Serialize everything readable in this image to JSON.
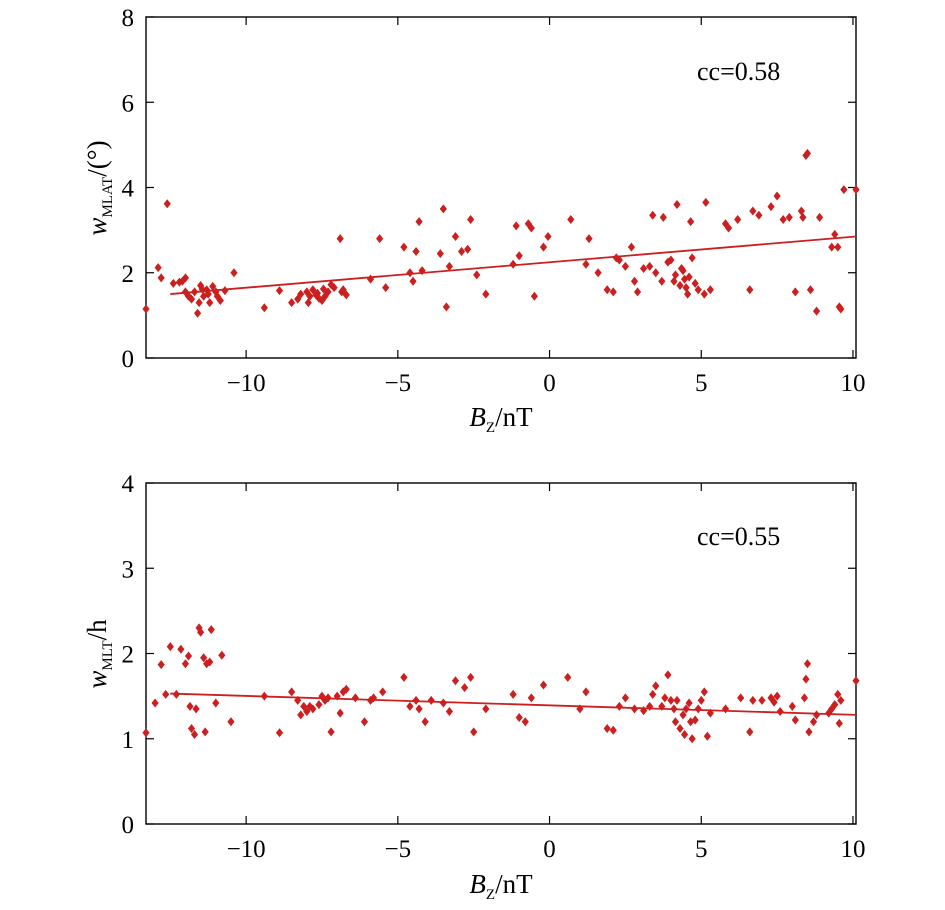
{
  "colors": {
    "marker": "#cc1f1f",
    "fit_line": "#cc1f1f",
    "axes": "#000000"
  },
  "chart_data": [
    {
      "type": "scatter",
      "title": "",
      "xlabel": {
        "base": "B",
        "sub": "Z",
        "suffix": "/nT"
      },
      "ylabel": {
        "base": "w",
        "sub": "MLAT",
        "suffix": "/(°)"
      },
      "xlim": [
        -13.3,
        10.1
      ],
      "ylim": [
        0,
        8
      ],
      "xticks": [
        -10,
        -5,
        0,
        5,
        10
      ],
      "xtick_labels": [
        "−10",
        "−5",
        "0",
        "5",
        "10"
      ],
      "yticks": [
        0,
        2,
        4,
        6,
        8
      ],
      "ytick_labels": [
        "0",
        "2",
        "4",
        "6",
        "8"
      ],
      "annotation": "cc=0.58",
      "grid": false,
      "marker": "diamond",
      "fit_line": {
        "x": [
          -12.5,
          10.1
        ],
        "y": [
          1.5,
          2.85
        ]
      },
      "points": [
        [
          -13.3,
          1.15
        ],
        [
          -12.9,
          2.12
        ],
        [
          -12.8,
          1.88
        ],
        [
          -12.6,
          3.62
        ],
        [
          -12.4,
          1.75
        ],
        [
          -12.2,
          1.78
        ],
        [
          -12.0,
          1.88
        ],
        [
          -12.1,
          1.8
        ],
        [
          -12.0,
          1.55
        ],
        [
          -11.9,
          1.45
        ],
        [
          -11.8,
          1.38
        ],
        [
          -11.7,
          1.55
        ],
        [
          -11.6,
          1.05
        ],
        [
          -11.55,
          1.3
        ],
        [
          -11.5,
          1.7
        ],
        [
          -11.45,
          1.62
        ],
        [
          -11.4,
          1.45
        ],
        [
          -11.3,
          1.6
        ],
        [
          -11.25,
          1.5
        ],
        [
          -11.2,
          1.3
        ],
        [
          -11.1,
          1.68
        ],
        [
          -11.0,
          1.55
        ],
        [
          -10.95,
          1.45
        ],
        [
          -10.85,
          1.35
        ],
        [
          -10.7,
          1.58
        ],
        [
          -10.4,
          2.0
        ],
        [
          -9.4,
          1.18
        ],
        [
          -8.9,
          1.58
        ],
        [
          -8.5,
          1.3
        ],
        [
          -8.3,
          1.38
        ],
        [
          -8.2,
          1.5
        ],
        [
          -8.0,
          1.55
        ],
        [
          -7.95,
          1.3
        ],
        [
          -7.9,
          1.45
        ],
        [
          -7.8,
          1.6
        ],
        [
          -7.7,
          1.48
        ],
        [
          -7.65,
          1.52
        ],
        [
          -7.6,
          1.4
        ],
        [
          -7.5,
          1.35
        ],
        [
          -7.45,
          1.62
        ],
        [
          -7.4,
          1.45
        ],
        [
          -7.3,
          1.55
        ],
        [
          -7.2,
          1.72
        ],
        [
          -7.1,
          1.65
        ],
        [
          -6.9,
          2.8
        ],
        [
          -6.85,
          1.55
        ],
        [
          -6.8,
          1.6
        ],
        [
          -6.7,
          1.48
        ],
        [
          -5.9,
          1.85
        ],
        [
          -5.6,
          2.8
        ],
        [
          -5.4,
          1.65
        ],
        [
          -4.8,
          2.6
        ],
        [
          -4.6,
          2.0
        ],
        [
          -4.5,
          1.8
        ],
        [
          -4.4,
          2.5
        ],
        [
          -4.3,
          3.2
        ],
        [
          -4.2,
          2.05
        ],
        [
          -3.6,
          2.45
        ],
        [
          -3.5,
          3.5
        ],
        [
          -3.4,
          1.2
        ],
        [
          -3.3,
          2.15
        ],
        [
          -3.1,
          2.85
        ],
        [
          -2.9,
          2.5
        ],
        [
          -2.7,
          2.55
        ],
        [
          -2.6,
          3.25
        ],
        [
          -2.4,
          1.95
        ],
        [
          -2.1,
          1.5
        ],
        [
          -1.2,
          2.2
        ],
        [
          -1.1,
          3.1
        ],
        [
          -1.0,
          2.4
        ],
        [
          -0.7,
          3.15
        ],
        [
          -0.6,
          3.05
        ],
        [
          -0.5,
          1.45
        ],
        [
          -0.2,
          2.6
        ],
        [
          -0.05,
          2.85
        ],
        [
          0.7,
          3.25
        ],
        [
          1.2,
          2.2
        ],
        [
          1.3,
          2.8
        ],
        [
          1.6,
          2.0
        ],
        [
          1.9,
          1.6
        ],
        [
          2.1,
          1.55
        ],
        [
          2.2,
          2.35
        ],
        [
          2.3,
          2.3
        ],
        [
          2.5,
          2.15
        ],
        [
          2.7,
          2.6
        ],
        [
          2.8,
          1.8
        ],
        [
          2.9,
          1.55
        ],
        [
          3.1,
          2.1
        ],
        [
          3.3,
          2.15
        ],
        [
          3.4,
          3.35
        ],
        [
          3.5,
          2.0
        ],
        [
          3.7,
          1.8
        ],
        [
          3.75,
          3.3
        ],
        [
          3.9,
          2.25
        ],
        [
          4.0,
          2.3
        ],
        [
          4.1,
          1.8
        ],
        [
          4.15,
          1.95
        ],
        [
          4.2,
          3.6
        ],
        [
          4.3,
          1.7
        ],
        [
          4.35,
          2.1
        ],
        [
          4.4,
          2.05
        ],
        [
          4.45,
          1.85
        ],
        [
          4.5,
          1.65
        ],
        [
          4.55,
          1.5
        ],
        [
          4.6,
          1.9
        ],
        [
          4.65,
          3.2
        ],
        [
          4.7,
          2.35
        ],
        [
          4.8,
          1.75
        ],
        [
          4.9,
          1.6
        ],
        [
          5.1,
          1.5
        ],
        [
          5.15,
          3.65
        ],
        [
          5.3,
          1.6
        ],
        [
          5.8,
          3.15
        ],
        [
          5.9,
          3.05
        ],
        [
          6.2,
          3.25
        ],
        [
          6.6,
          1.6
        ],
        [
          6.7,
          3.45
        ],
        [
          6.9,
          3.35
        ],
        [
          7.3,
          3.55
        ],
        [
          7.5,
          3.8
        ],
        [
          7.7,
          3.25
        ],
        [
          7.9,
          3.3
        ],
        [
          8.1,
          1.55
        ],
        [
          8.3,
          3.45
        ],
        [
          8.35,
          3.3
        ],
        [
          8.45,
          4.75
        ],
        [
          8.5,
          4.8
        ],
        [
          8.6,
          1.6
        ],
        [
          8.8,
          1.1
        ],
        [
          8.9,
          3.3
        ],
        [
          9.3,
          2.6
        ],
        [
          9.4,
          2.9
        ],
        [
          9.5,
          2.6
        ],
        [
          9.55,
          1.2
        ],
        [
          9.6,
          1.15
        ],
        [
          9.7,
          3.95
        ],
        [
          10.1,
          3.95
        ]
      ]
    },
    {
      "type": "scatter",
      "title": "",
      "xlabel": {
        "base": "B",
        "sub": "Z",
        "suffix": "/nT"
      },
      "ylabel": {
        "base": "w",
        "sub": "MLT",
        "suffix": "/h"
      },
      "xlim": [
        -13.3,
        10.1
      ],
      "ylim": [
        0,
        4
      ],
      "xticks": [
        -10,
        -5,
        0,
        5,
        10
      ],
      "xtick_labels": [
        "−10",
        "−5",
        "0",
        "5",
        "10"
      ],
      "yticks": [
        0,
        1,
        2,
        3,
        4
      ],
      "ytick_labels": [
        "0",
        "1",
        "2",
        "3",
        "4"
      ],
      "annotation": "cc=0.55",
      "grid": false,
      "marker": "diamond",
      "fit_line": {
        "x": [
          -12.5,
          10.1
        ],
        "y": [
          1.53,
          1.28
        ]
      },
      "points": [
        [
          -13.3,
          1.07
        ],
        [
          -13.0,
          1.42
        ],
        [
          -12.8,
          1.87
        ],
        [
          -12.65,
          1.52
        ],
        [
          -12.5,
          2.08
        ],
        [
          -12.3,
          1.52
        ],
        [
          -12.15,
          2.05
        ],
        [
          -12.0,
          1.88
        ],
        [
          -11.9,
          1.97
        ],
        [
          -11.85,
          1.38
        ],
        [
          -11.8,
          1.12
        ],
        [
          -11.7,
          1.05
        ],
        [
          -11.65,
          1.35
        ],
        [
          -11.55,
          2.3
        ],
        [
          -11.5,
          2.25
        ],
        [
          -11.4,
          1.95
        ],
        [
          -11.35,
          1.08
        ],
        [
          -11.3,
          1.88
        ],
        [
          -11.2,
          1.9
        ],
        [
          -11.15,
          2.28
        ],
        [
          -11.0,
          1.42
        ],
        [
          -10.8,
          1.98
        ],
        [
          -10.5,
          1.2
        ],
        [
          -9.4,
          1.5
        ],
        [
          -8.9,
          1.07
        ],
        [
          -8.5,
          1.55
        ],
        [
          -8.3,
          1.45
        ],
        [
          -8.2,
          1.28
        ],
        [
          -8.1,
          1.38
        ],
        [
          -8.0,
          1.32
        ],
        [
          -7.9,
          1.38
        ],
        [
          -7.8,
          1.35
        ],
        [
          -7.6,
          1.4
        ],
        [
          -7.5,
          1.5
        ],
        [
          -7.4,
          1.45
        ],
        [
          -7.3,
          1.48
        ],
        [
          -7.2,
          1.08
        ],
        [
          -7.0,
          1.5
        ],
        [
          -6.9,
          1.3
        ],
        [
          -6.8,
          1.55
        ],
        [
          -6.7,
          1.58
        ],
        [
          -6.4,
          1.48
        ],
        [
          -6.1,
          1.2
        ],
        [
          -5.9,
          1.45
        ],
        [
          -5.8,
          1.48
        ],
        [
          -5.5,
          1.55
        ],
        [
          -4.8,
          1.72
        ],
        [
          -4.6,
          1.38
        ],
        [
          -4.4,
          1.45
        ],
        [
          -4.3,
          1.35
        ],
        [
          -4.1,
          1.2
        ],
        [
          -3.9,
          1.45
        ],
        [
          -3.5,
          1.42
        ],
        [
          -3.3,
          1.32
        ],
        [
          -3.1,
          1.68
        ],
        [
          -2.8,
          1.6
        ],
        [
          -2.6,
          1.72
        ],
        [
          -2.5,
          1.08
        ],
        [
          -2.1,
          1.35
        ],
        [
          -1.2,
          1.52
        ],
        [
          -1.0,
          1.25
        ],
        [
          -0.8,
          1.2
        ],
        [
          -0.6,
          1.48
        ],
        [
          -0.2,
          1.63
        ],
        [
          0.6,
          1.72
        ],
        [
          1.0,
          1.35
        ],
        [
          1.2,
          1.55
        ],
        [
          1.9,
          1.12
        ],
        [
          2.1,
          1.1
        ],
        [
          2.3,
          1.38
        ],
        [
          2.5,
          1.48
        ],
        [
          2.8,
          1.35
        ],
        [
          3.1,
          1.33
        ],
        [
          3.3,
          1.38
        ],
        [
          3.4,
          1.52
        ],
        [
          3.5,
          1.62
        ],
        [
          3.7,
          1.38
        ],
        [
          3.8,
          1.48
        ],
        [
          3.9,
          1.75
        ],
        [
          4.0,
          1.45
        ],
        [
          4.1,
          1.35
        ],
        [
          4.15,
          1.2
        ],
        [
          4.2,
          1.45
        ],
        [
          4.3,
          1.12
        ],
        [
          4.4,
          1.28
        ],
        [
          4.45,
          1.05
        ],
        [
          4.5,
          1.35
        ],
        [
          4.6,
          1.42
        ],
        [
          4.65,
          1.2
        ],
        [
          4.7,
          1.0
        ],
        [
          4.8,
          1.22
        ],
        [
          4.9,
          1.35
        ],
        [
          5.0,
          1.45
        ],
        [
          5.1,
          1.55
        ],
        [
          5.2,
          1.03
        ],
        [
          5.3,
          1.3
        ],
        [
          5.8,
          1.35
        ],
        [
          6.3,
          1.48
        ],
        [
          6.6,
          1.08
        ],
        [
          6.7,
          1.45
        ],
        [
          7.0,
          1.45
        ],
        [
          7.3,
          1.48
        ],
        [
          7.4,
          1.43
        ],
        [
          7.5,
          1.5
        ],
        [
          7.6,
          1.32
        ],
        [
          8.0,
          1.38
        ],
        [
          8.1,
          1.22
        ],
        [
          8.4,
          1.48
        ],
        [
          8.45,
          1.7
        ],
        [
          8.5,
          1.88
        ],
        [
          8.55,
          1.08
        ],
        [
          8.7,
          1.2
        ],
        [
          8.8,
          1.28
        ],
        [
          9.2,
          1.3
        ],
        [
          9.3,
          1.35
        ],
        [
          9.4,
          1.4
        ],
        [
          9.5,
          1.52
        ],
        [
          9.55,
          1.18
        ],
        [
          9.6,
          1.45
        ],
        [
          10.1,
          1.68
        ]
      ]
    }
  ]
}
